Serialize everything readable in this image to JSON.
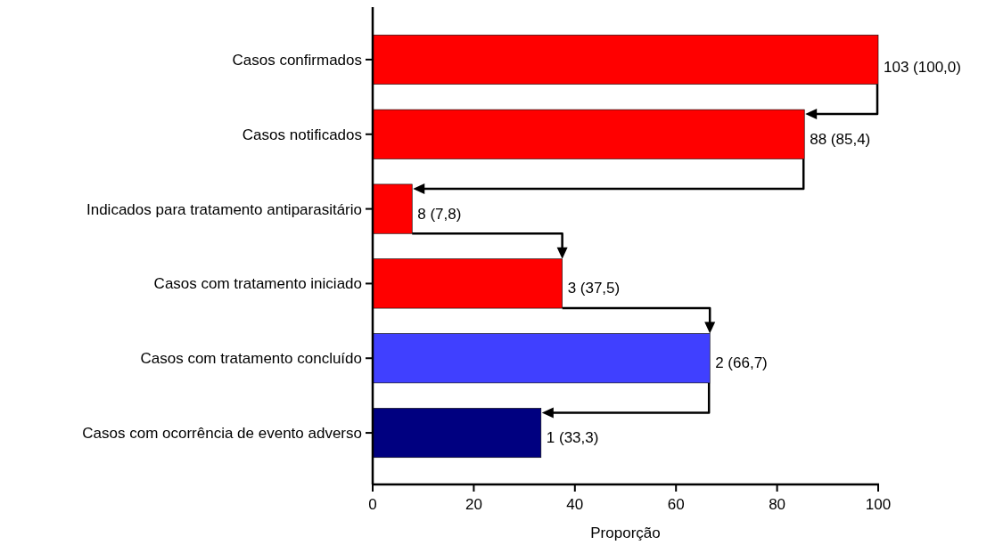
{
  "chart_data": {
    "type": "bar",
    "orientation": "horizontal",
    "xlabel": "Proporção",
    "categories": [
      "Casos confirmados",
      "Casos notificados",
      "Indicados para tratamento antiparasitário",
      "Casos com tratamento iniciado",
      "Casos com tratamento concluído",
      "Casos com ocorrência de evento adverso"
    ],
    "values": [
      100,
      85.4,
      7.8,
      37.5,
      66.7,
      33.3
    ],
    "colors": [
      "#ff0000",
      "#ff0000",
      "#ff0000",
      "#ff0000",
      "#4040ff",
      "#000080"
    ],
    "value_labels": [
      "103 (100,0)",
      "88 (85,4)",
      "8 (7,8)",
      "3 (37,5)",
      "2 (66,7)",
      "1 (33,3)"
    ],
    "xlim": [
      0,
      100
    ],
    "xticks": [
      0,
      20,
      40,
      60,
      80,
      100
    ],
    "grid": false
  }
}
